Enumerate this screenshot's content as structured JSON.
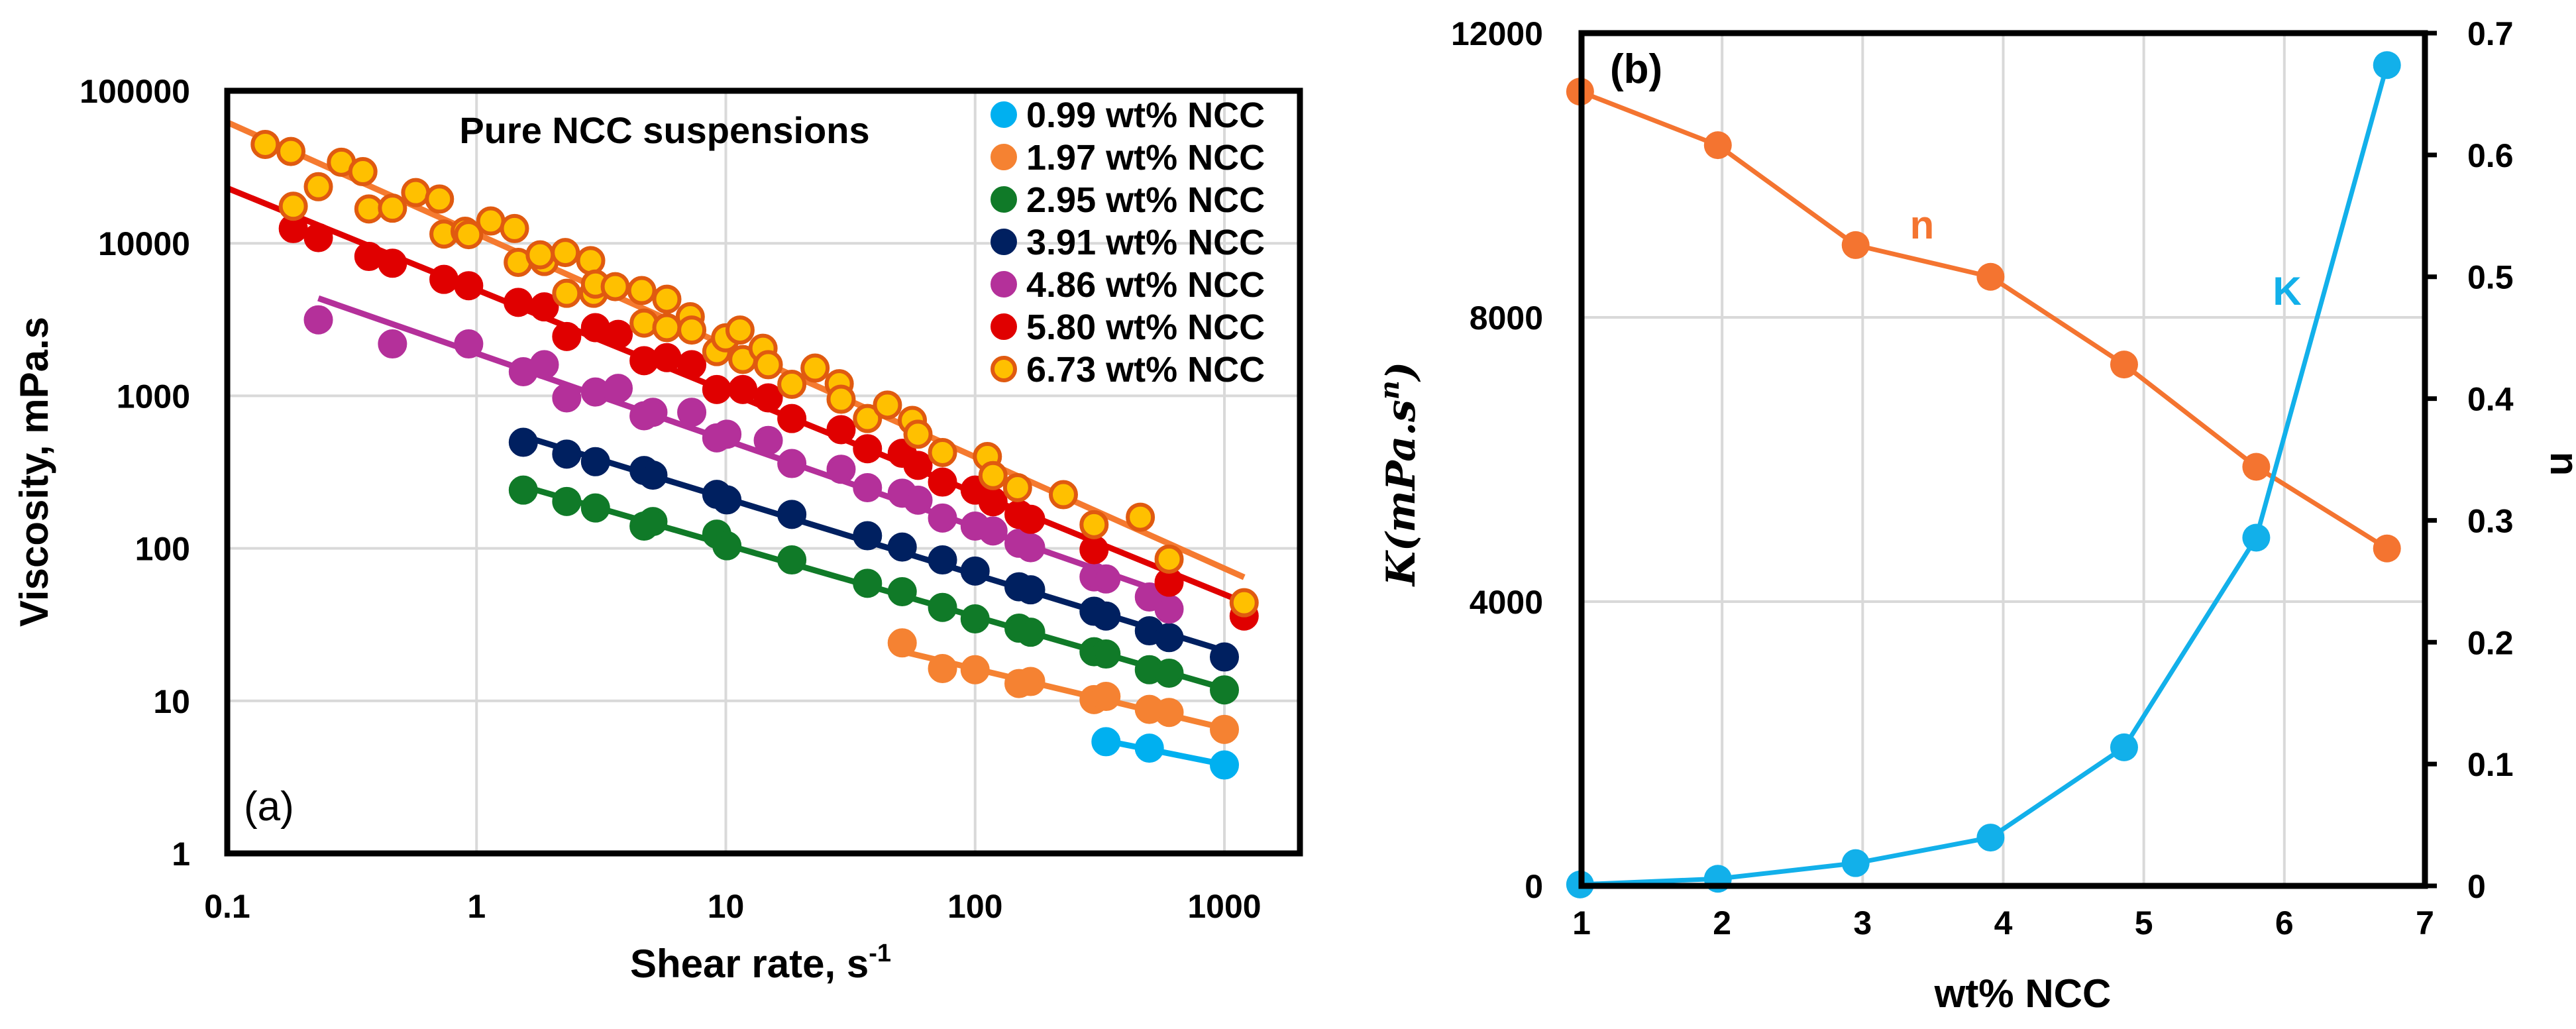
{
  "chart_data": [
    {
      "type": "scatter",
      "panel_label": "(a)",
      "title": "Pure NCC suspensions",
      "xlabel": "Shear rate, s",
      "xlabel_sup": "-1",
      "ylabel": "Viscosity, mPa.s",
      "xscale": "log",
      "yscale": "log",
      "xlim": [
        0.1,
        2000
      ],
      "ylim": [
        1,
        100000
      ],
      "xticks": [
        "0.1",
        "1",
        "10",
        "100",
        "1000"
      ],
      "yticks": [
        "1",
        "10",
        "100",
        "1000",
        "10000",
        "100000"
      ],
      "xtick_values": [
        0.1,
        1,
        10,
        100,
        1000
      ],
      "ytick_values": [
        1,
        10,
        100,
        1000,
        10000,
        100000
      ],
      "grid": true,
      "legend_position": "top-right",
      "series": [
        {
          "name": "0.99 wt% NCC",
          "color": "#00B0F0",
          "edge": "#00B0F0",
          "line": "#00B0F0",
          "fit_range": [
            335,
            1000
          ],
          "x": [
            335,
            500,
            1000
          ],
          "y": [
            5.4,
            4.9,
            3.8
          ]
        },
        {
          "name": "1.97 wt% NCC",
          "color": "#F58232",
          "edge": "#F58232",
          "line": "#F58232",
          "fit_range": [
            50,
            1000
          ],
          "x": [
            51,
            74,
            100,
            150,
            167,
            300,
            335,
            500,
            600,
            1000
          ],
          "y": [
            24,
            16.3,
            16,
            13,
            13.4,
            10.2,
            10.7,
            8.8,
            8.4,
            6.5
          ]
        },
        {
          "name": "2.95 wt% NCC",
          "color": "#107A28",
          "edge": "#107A28",
          "line": "#107A28",
          "fit_range": [
            1.54,
            1000
          ],
          "x": [
            1.54,
            2.3,
            3.0,
            4.7,
            5.1,
            9.2,
            10.1,
            18.4,
            37,
            51,
            74,
            100,
            150,
            167,
            300,
            335,
            500,
            600,
            1000
          ],
          "y": [
            241,
            203,
            184,
            140,
            150,
            124,
            104,
            84,
            59,
            52,
            41,
            34.5,
            30,
            28.2,
            21,
            20.3,
            16,
            15.2,
            11.8
          ]
        },
        {
          "name": "3.91 wt% NCC",
          "color": "#002060",
          "edge": "#002060",
          "line": "#002060",
          "fit_range": [
            1.54,
            1000
          ],
          "x": [
            1.54,
            2.3,
            3.0,
            4.7,
            5.1,
            9.2,
            10.1,
            18.4,
            37,
            51,
            74,
            100,
            150,
            167,
            300,
            335,
            500,
            600,
            1000
          ],
          "y": [
            496,
            415,
            370,
            324,
            302,
            226,
            208,
            167,
            121,
            102,
            84,
            71,
            56,
            53.5,
            38.7,
            36,
            28.8,
            26,
            19.4
          ]
        },
        {
          "name": "4.86 wt% NCC",
          "color": "#B4309A",
          "edge": "#B4309A",
          "line": "#B4309A",
          "fit_range": [
            0.232,
            600
          ],
          "x": [
            0.232,
            0.46,
            0.93,
            1.54,
            1.87,
            2.3,
            3.0,
            3.7,
            4.7,
            5.1,
            7.3,
            9.2,
            10.1,
            14.8,
            18.4,
            29,
            37,
            51,
            59,
            74,
            100,
            118,
            150,
            167,
            300,
            335,
            500,
            600
          ],
          "y": [
            3150,
            2190,
            2190,
            1440,
            1600,
            970,
            1060,
            1120,
            740,
            780,
            780,
            530,
            560,
            510,
            360,
            330,
            250,
            230,
            207,
            158,
            140,
            130,
            108,
            101,
            65,
            63,
            48,
            40
          ]
        },
        {
          "name": "5.80 wt% NCC",
          "color": "#E00000",
          "edge": "#E00000",
          "line": "#E00000",
          "fit_range": [
            0.1,
            1200
          ],
          "x": [
            0.184,
            0.232,
            0.37,
            0.46,
            0.74,
            0.93,
            1.47,
            1.87,
            2.3,
            3.0,
            3.7,
            4.7,
            5.8,
            7.3,
            9.2,
            11.7,
            14.8,
            18.4,
            29,
            37,
            51,
            59,
            74,
            100,
            118,
            150,
            167,
            300,
            600,
            1200
          ],
          "y": [
            12500,
            10900,
            8200,
            7400,
            5800,
            5270,
            4100,
            3830,
            2450,
            2800,
            2530,
            1700,
            1780,
            1600,
            1100,
            1100,
            970,
            710,
            600,
            450,
            420,
            350,
            272,
            241,
            202,
            167,
            155,
            98,
            60,
            36
          ]
        },
        {
          "name": "6.73 wt% NCC",
          "color": "#FFC000",
          "edge": "#E05A10",
          "line": "#F57A30",
          "fit_range": [
            0.1,
            1200
          ],
          "x": [
            0.142,
            0.18,
            0.184,
            0.232,
            0.287,
            0.35,
            0.37,
            0.46,
            0.57,
            0.71,
            0.74,
            0.9,
            0.93,
            1.14,
            1.42,
            1.47,
            1.87,
            1.8,
            2.27,
            2.3,
            2.87,
            2.95,
            3.0,
            3.6,
            4.6,
            4.7,
            5.8,
            5.8,
            7.2,
            7.3,
            9.2,
            9.98,
            11.4,
            11.7,
            14.1,
            14.8,
            18.4,
            22.8,
            28.5,
            29,
            37,
            44.5,
            56,
            59,
            74,
            112,
            118,
            148,
            226,
            300,
            460,
            600,
            1200
          ],
          "y": [
            44500,
            40000,
            17500,
            23500,
            34000,
            29500,
            16800,
            17000,
            21500,
            19500,
            11500,
            12000,
            11400,
            14000,
            12500,
            7500,
            7600,
            8400,
            8700,
            4700,
            7700,
            4700,
            5400,
            5200,
            4900,
            3000,
            4300,
            2800,
            3300,
            2700,
            1950,
            2400,
            2700,
            1730,
            2050,
            1600,
            1190,
            1520,
            1200,
            950,
            710,
            870,
            690,
            560,
            425,
            400,
            300,
            250,
            225,
            143,
            160,
            85,
            44
          ]
        }
      ]
    },
    {
      "type": "line",
      "panel_label": "(b)",
      "xlabel": "wt% NCC",
      "ylabel": "K(mPa.s",
      "ylabel_sup": "n",
      "ylabel_close": ")",
      "y2label": "n",
      "xlim": [
        1,
        7
      ],
      "ylim": [
        0,
        12000
      ],
      "y2lim": [
        0,
        0.7
      ],
      "xticks": [
        "1",
        "2",
        "3",
        "4",
        "5",
        "6",
        "7"
      ],
      "yticks": [
        "0",
        "4000",
        "8000",
        "12000"
      ],
      "y2ticks": [
        "0",
        "0.1",
        "0.2",
        "0.3",
        "0.4",
        "0.5",
        "0.6",
        "0.7"
      ],
      "grid": true,
      "series": [
        {
          "name": "n",
          "axis": "right",
          "color": "#F47430",
          "x": [
            0.99,
            1.97,
            2.95,
            3.91,
            4.86,
            5.8,
            6.73
          ],
          "y": [
            0.652,
            0.608,
            0.526,
            0.5,
            0.428,
            0.344,
            0.277
          ]
        },
        {
          "name": "K",
          "axis": "left",
          "color": "#12B0EA",
          "x": [
            0.99,
            1.97,
            2.95,
            3.91,
            4.86,
            5.8,
            6.73
          ],
          "y": [
            20,
            100,
            320,
            680,
            1950,
            4900,
            11550
          ]
        }
      ]
    }
  ]
}
